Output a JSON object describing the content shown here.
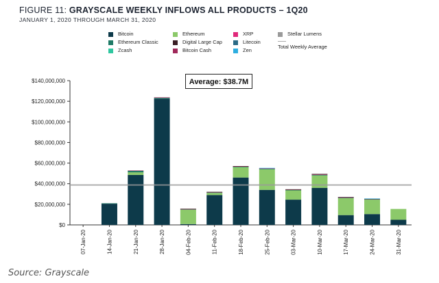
{
  "title": {
    "figure_label": "FIGURE 11:",
    "main": "GRAYSCALE WEEKLY INFLOWS ALL PRODUCTS – 1Q20",
    "subtitle": "JANUARY 1, 2020 THROUGH MARCH 31, 2020"
  },
  "source": "Source: Grayscale",
  "average_label": "Average: $38.7M",
  "legend": [
    {
      "name": "Bitcoin",
      "color": "#0d3a4a"
    },
    {
      "name": "Ethereum",
      "color": "#8cc96a"
    },
    {
      "name": "XRP",
      "color": "#e0287a"
    },
    {
      "name": "Stellar Lumens",
      "color": "#9a9a9a"
    },
    {
      "name": "Ethereum Classic",
      "color": "#1f7a66"
    },
    {
      "name": "Digital Large Cap",
      "color": "#3a1e24"
    },
    {
      "name": "Litecoin",
      "color": "#2a6a86"
    },
    {
      "name": "Zcash",
      "color": "#2fc7a0"
    },
    {
      "name": "Bitcoin Cash",
      "color": "#a0285a"
    },
    {
      "name": "Zen",
      "color": "#2eaee0"
    },
    {
      "name": "Total Weekly Average",
      "color": "#aaaaaa"
    }
  ],
  "chart_data": {
    "type": "bar",
    "stacked": true,
    "categories": [
      "07-Jan-20",
      "14-Jan-20",
      "21-Jan-20",
      "28-Jan-20",
      "04-Feb-20",
      "11-Feb-20",
      "18-Feb-20",
      "25-Feb-20",
      "03-Mar-20",
      "10-Mar-20",
      "17-Mar-20",
      "24-Mar-20",
      "31-Mar-20"
    ],
    "series": [
      {
        "name": "Bitcoin",
        "color": "#0d3a4a",
        "values": [
          0,
          20.5,
          48.5,
          122.5,
          0.8,
          29,
          46,
          34,
          24.5,
          36,
          9.5,
          10.5,
          5
        ]
      },
      {
        "name": "Ethereum",
        "color": "#8cc96a",
        "values": [
          0,
          0,
          2.5,
          0,
          14,
          2,
          10,
          20,
          9,
          12,
          16.5,
          14,
          10.5
        ]
      },
      {
        "name": "Ethereum Classic",
        "color": "#1f7a66",
        "values": [
          0,
          0.5,
          1.5,
          0.8,
          0.3,
          0.5,
          0.5,
          0.5,
          0.5,
          0.5,
          0.3,
          0.5,
          0
        ]
      },
      {
        "name": "Bitcoin Cash",
        "color": "#a0285a",
        "values": [
          0,
          0,
          0.3,
          0.5,
          0.3,
          0.3,
          0.3,
          0.3,
          0.3,
          0.5,
          0.5,
          0.3,
          0
        ]
      },
      {
        "name": "Digital Large Cap",
        "color": "#3a1e24",
        "values": [
          0,
          0,
          0,
          0,
          0.3,
          0.3,
          0.3,
          0,
          0.3,
          0.5,
          0.3,
          0,
          0
        ]
      },
      {
        "name": "Zen",
        "color": "#2eaee0",
        "values": [
          0,
          0,
          0,
          0,
          0,
          0,
          0,
          0.5,
          0,
          0,
          0,
          0.3,
          0
        ]
      }
    ],
    "average": 38.7,
    "ylim": [
      0,
      140
    ],
    "yticks": [
      0,
      20,
      40,
      60,
      80,
      100,
      120,
      140
    ],
    "ytick_labels": [
      "$0",
      "$20,000,000",
      "$40,000,000",
      "$60,000,000",
      "$80,000,000",
      "$100,000,000",
      "$120,000,000",
      "$140,000,000"
    ],
    "unit": "$M",
    "grid": false,
    "legend_position": "top"
  }
}
